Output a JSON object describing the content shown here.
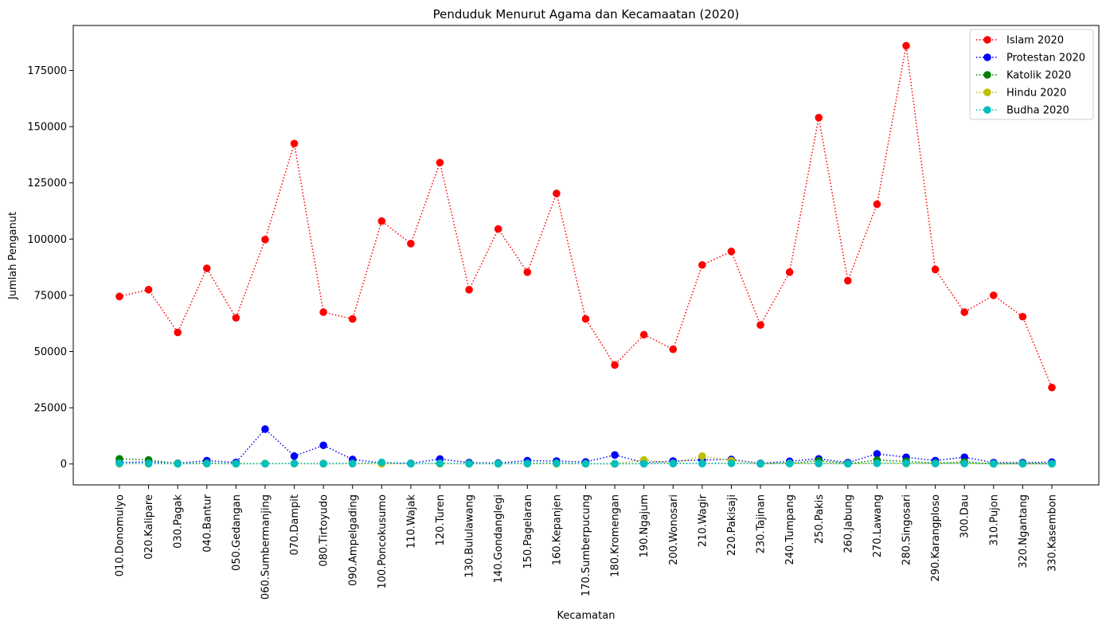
{
  "chart_data": {
    "type": "line",
    "title": "Penduduk Menurut Agama dan Kecamaatan (2020)",
    "xlabel": "Kecamatan",
    "ylabel": "Jumlah Penganut",
    "ylim": [
      -9300,
      195000
    ],
    "yticks": [
      0,
      25000,
      50000,
      75000,
      100000,
      125000,
      150000,
      175000
    ],
    "grid": false,
    "legend_position": "top-right",
    "line_style": "dotted",
    "categories": [
      "010.Donomulyo",
      "020.Kalipare",
      "030.Pagak",
      "040.Bantur",
      "050.Gedangan",
      "060.Sumbermanjing",
      "070.Dampit",
      "080.Tirtoyudo",
      "090.Ampelgading",
      "100.Poncokusumo",
      "110.Wajak",
      "120.Turen",
      "130.Bululawang",
      "140.Gondanglegi",
      "150.Pagelaran",
      "160.Kepanjen",
      "170.Sumberpucung",
      "180.Kromengan",
      "190.Ngajum",
      "200.Wonosari",
      "210.Wagir",
      "220.Pakisaji",
      "230.Tajinan",
      "240.Tumpang",
      "250.Pakis",
      "260.Jabung",
      "270.Lawang",
      "280.Singosari",
      "290.Karangploso",
      "300.Dau",
      "310.Pujon",
      "320.Ngantang",
      "330.Kasembon"
    ],
    "series": [
      {
        "name": "Islam 2020",
        "color": "#ff0000",
        "values": [
          74500,
          77500,
          58500,
          87000,
          65000,
          99800,
          142500,
          67500,
          64500,
          108000,
          98000,
          134000,
          77500,
          104500,
          85300,
          120300,
          64500,
          44000,
          57500,
          51000,
          88500,
          94500,
          61800,
          85300,
          154000,
          81500,
          115500,
          186000,
          86500,
          67500,
          75000,
          65500,
          34000
        ]
      },
      {
        "name": "Protestan 2020",
        "color": "#0000ff",
        "values": [
          700,
          900,
          300,
          1500,
          700,
          15500,
          3500,
          8300,
          2000,
          500,
          300,
          2200,
          600,
          400,
          1500,
          1300,
          900,
          4000,
          600,
          1300,
          1800,
          2000,
          300,
          1200,
          2300,
          600,
          4500,
          3000,
          1500,
          3000,
          600,
          600,
          800
        ]
      },
      {
        "name": "Katolik 2020",
        "color": "#008000",
        "values": [
          2300,
          1800,
          200,
          400,
          200,
          200,
          200,
          200,
          300,
          200,
          200,
          300,
          200,
          200,
          300,
          400,
          200,
          100,
          200,
          200,
          200,
          300,
          100,
          300,
          1500,
          200,
          1700,
          1200,
          400,
          900,
          100,
          200,
          100
        ]
      },
      {
        "name": "Hindu 2020",
        "color": "#bfbf00",
        "values": [
          100,
          100,
          100,
          100,
          100,
          200,
          100,
          100,
          100,
          100,
          100,
          100,
          100,
          100,
          100,
          100,
          100,
          100,
          1800,
          300,
          3500,
          1500,
          100,
          300,
          200,
          100,
          300,
          200,
          200,
          200,
          100,
          100,
          100
        ]
      },
      {
        "name": "Budha 2020",
        "color": "#00bfbf",
        "values": [
          300,
          200,
          100,
          200,
          100,
          100,
          200,
          100,
          200,
          700,
          100,
          300,
          100,
          100,
          200,
          300,
          100,
          100,
          100,
          200,
          200,
          300,
          100,
          200,
          200,
          100,
          300,
          300,
          200,
          200,
          100,
          100,
          100
        ]
      }
    ]
  }
}
